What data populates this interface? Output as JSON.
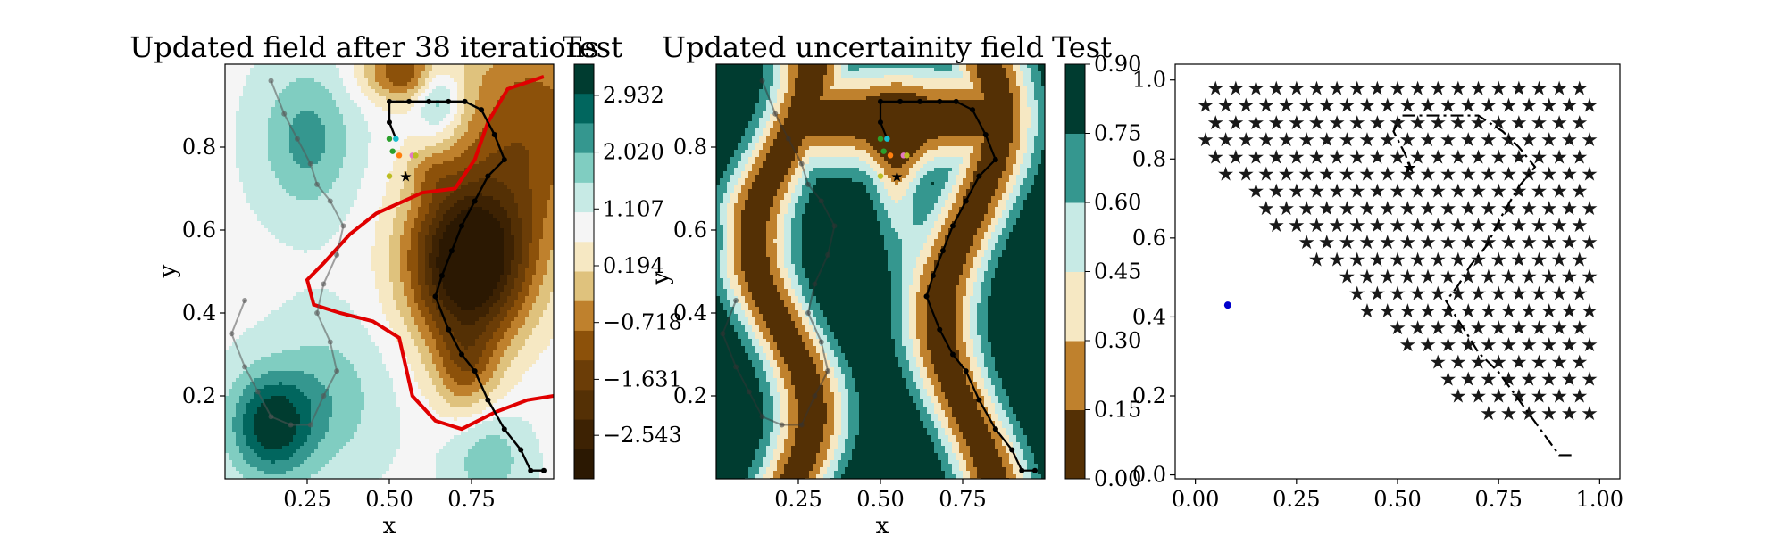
{
  "chart_data": [
    {
      "type": "heatmap",
      "title": "Updated field after 38 iterations",
      "xlabel": "x",
      "ylabel": "y",
      "xlim": [
        0.0,
        1.0
      ],
      "ylim": [
        0.0,
        1.0
      ],
      "xticks": [
        "0.25",
        "0.50",
        "0.75"
      ],
      "yticks": [
        "0.2",
        "0.4",
        "0.6",
        "0.8"
      ],
      "colorbar": {
        "label": "Test",
        "ticks": [
          "2.932",
          "2.020",
          "1.107",
          "0.194",
          "−0.718",
          "−1.631",
          "−2.543"
        ],
        "levels": [
          3.4,
          2.932,
          2.476,
          2.02,
          1.563,
          1.107,
          0.651,
          0.194,
          -0.262,
          -0.718,
          -1.175,
          -1.631,
          -2.087,
          -2.543,
          -3.0
        ],
        "colors": [
          "#003c30",
          "#01665e",
          "#35978f",
          "#80cdc1",
          "#c7eae5",
          "#f5f5f5",
          "#f6e8c3",
          "#dfc27d",
          "#bf812d",
          "#8c510a",
          "#6b3d07",
          "#543005",
          "#3d2203",
          "#2b1802"
        ]
      },
      "highlight_contour_color": "#e00000",
      "path_color": "#000000"
    },
    {
      "type": "heatmap",
      "title": "Updated uncertainity field",
      "xlabel": "x",
      "ylabel": "y",
      "xlim": [
        0.0,
        1.0
      ],
      "ylim": [
        0.0,
        1.0
      ],
      "xticks": [
        "0.25",
        "0.50",
        "0.75"
      ],
      "yticks": [
        "0.2",
        "0.4",
        "0.6",
        "0.8"
      ],
      "colorbar": {
        "label": "Test",
        "ticks": [
          "0.90",
          "0.75",
          "0.60",
          "0.45",
          "0.30",
          "0.15",
          "0.00"
        ],
        "levels": [
          0.0,
          0.15,
          0.3,
          0.45,
          0.6,
          0.75,
          0.9
        ],
        "colors": [
          "#543005",
          "#bf812d",
          "#f6e8c3",
          "#c7eae5",
          "#35978f",
          "#003c30"
        ]
      }
    },
    {
      "type": "scatter",
      "xlim": [
        0.0,
        1.0
      ],
      "ylim": [
        0.0,
        1.0
      ],
      "xticks": [
        "0.00",
        "0.25",
        "0.50",
        "0.75",
        "1.00"
      ],
      "yticks": [
        "0.0",
        "0.2",
        "0.4",
        "0.6",
        "0.8",
        "1.0"
      ],
      "marker_color": "#9467bd",
      "current_position_color": "#d62728",
      "point_color": "#0000cc",
      "point": [
        0.08,
        0.43
      ]
    }
  ]
}
